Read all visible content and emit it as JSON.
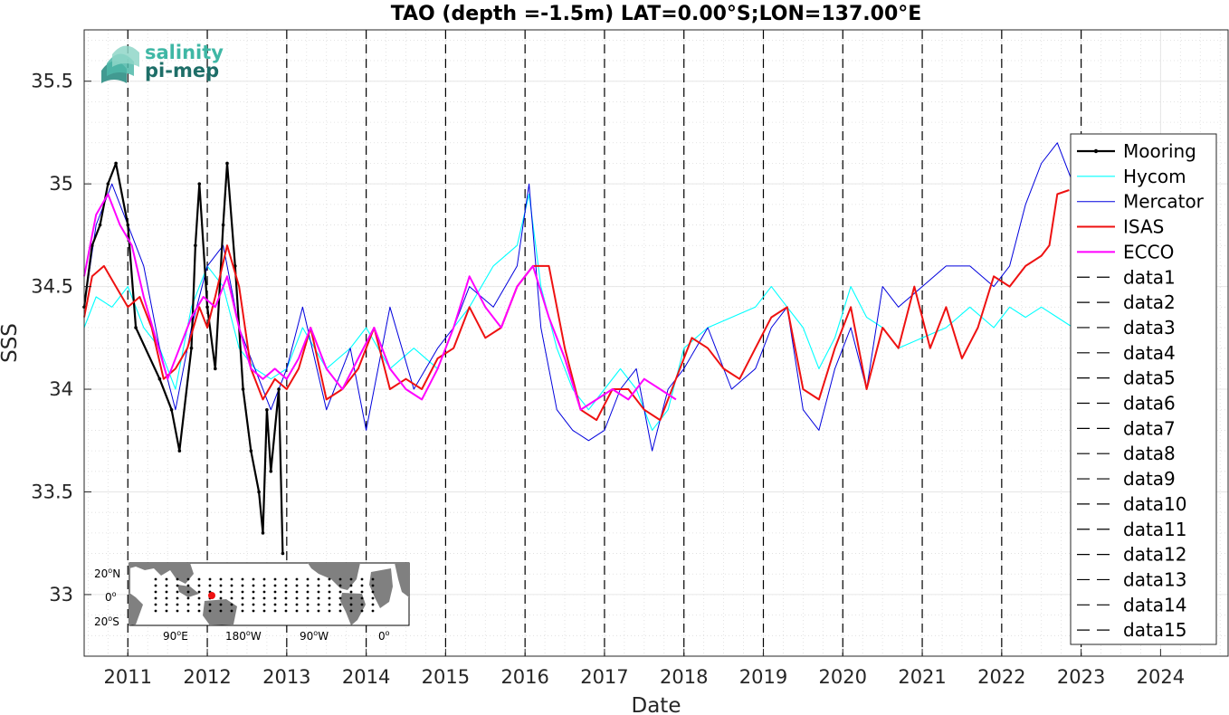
{
  "chart_data": {
    "type": "line",
    "title": "TAO (depth =-1.5m) LAT=0.00°S;LON=137.00°E",
    "xlabel": "Date",
    "ylabel": "SSS",
    "xlim": [
      2010.45,
      2024.85
    ],
    "ylim": [
      32.7,
      35.75
    ],
    "grid": "on",
    "x_ticks": [
      2011,
      2012,
      2013,
      2014,
      2015,
      2016,
      2017,
      2018,
      2019,
      2020,
      2021,
      2022,
      2023,
      2024
    ],
    "x_tick_labels": [
      "2011",
      "2012",
      "2013",
      "2014",
      "2015",
      "2016",
      "2017",
      "2018",
      "2019",
      "2020",
      "2021",
      "2022",
      "2023",
      "2024"
    ],
    "y_ticks": [
      33,
      33.5,
      34,
      34.5,
      35,
      35.5
    ],
    "y_tick_labels": [
      "33",
      "33.5",
      "34",
      "34.5",
      "35",
      "35.5"
    ],
    "vertical_dashed_lines": [
      2011,
      2012,
      2013,
      2014,
      2015,
      2016,
      2017,
      2018,
      2019,
      2020,
      2021,
      2022,
      2023
    ],
    "legend_position": "right",
    "series": [
      {
        "name": "Mooring",
        "color": "#000000",
        "style": "solid-dots",
        "width": 2.2,
        "x": [
          2010.45,
          2010.55,
          2010.65,
          2010.75,
          2010.85,
          2011.0,
          2011.1,
          2011.4,
          2011.55,
          2011.65,
          2011.8,
          2011.85,
          2011.9,
          2012.0,
          2012.1,
          2012.2,
          2012.25,
          2012.35,
          2012.45,
          2012.55,
          2012.65,
          2012.7,
          2012.75,
          2012.8,
          2012.9,
          2012.95
        ],
        "values": [
          34.4,
          34.7,
          34.8,
          35.0,
          35.1,
          34.8,
          34.3,
          34.05,
          33.9,
          33.7,
          34.2,
          34.7,
          35.0,
          34.4,
          34.1,
          34.8,
          35.1,
          34.6,
          34.0,
          33.7,
          33.5,
          33.3,
          33.9,
          33.6,
          34.0,
          33.2
        ]
      },
      {
        "name": "Hycom",
        "color": "#00ffff",
        "style": "solid",
        "width": 1.1,
        "x": [
          2010.45,
          2010.6,
          2010.8,
          2011.0,
          2011.2,
          2011.4,
          2011.6,
          2011.8,
          2012.0,
          2012.2,
          2012.4,
          2012.6,
          2012.8,
          2013.0,
          2013.2,
          2013.5,
          2013.8,
          2014.0,
          2014.3,
          2014.6,
          2014.9,
          2015.1,
          2015.3,
          2015.6,
          2015.9,
          2016.05,
          2016.2,
          2016.4,
          2016.6,
          2016.8,
          2017.0,
          2017.2,
          2017.4,
          2017.6,
          2017.8,
          2018.0,
          2018.3,
          2018.6,
          2018.9,
          2019.1,
          2019.3,
          2019.5,
          2019.7,
          2019.9,
          2020.1,
          2020.3,
          2020.5,
          2020.7,
          2021.0,
          2021.3,
          2021.6,
          2021.9,
          2022.1,
          2022.3,
          2022.5,
          2022.7,
          2022.9
        ],
        "values": [
          34.3,
          34.45,
          34.4,
          34.5,
          34.3,
          34.2,
          34.0,
          34.4,
          34.6,
          34.5,
          34.2,
          34.1,
          34.05,
          34.1,
          34.3,
          34.1,
          34.2,
          34.3,
          34.1,
          34.2,
          34.1,
          34.3,
          34.4,
          34.6,
          34.7,
          34.95,
          34.5,
          34.2,
          34.0,
          33.9,
          34.0,
          34.1,
          34.0,
          33.8,
          33.9,
          34.2,
          34.3,
          34.35,
          34.4,
          34.5,
          34.4,
          34.3,
          34.1,
          34.25,
          34.5,
          34.35,
          34.3,
          34.2,
          34.25,
          34.3,
          34.4,
          34.3,
          34.4,
          34.35,
          34.4,
          34.35,
          34.3
        ]
      },
      {
        "name": "Mercator",
        "color": "#0000dd",
        "style": "solid",
        "width": 1.0,
        "x": [
          2010.45,
          2010.6,
          2010.8,
          2011.0,
          2011.2,
          2011.4,
          2011.6,
          2011.8,
          2012.0,
          2012.2,
          2012.4,
          2012.6,
          2012.8,
          2013.0,
          2013.2,
          2013.5,
          2013.8,
          2014.0,
          2014.3,
          2014.6,
          2014.9,
          2015.1,
          2015.3,
          2015.6,
          2015.9,
          2016.05,
          2016.2,
          2016.4,
          2016.6,
          2016.8,
          2017.0,
          2017.2,
          2017.4,
          2017.6,
          2017.8,
          2018.0,
          2018.3,
          2018.6,
          2018.9,
          2019.1,
          2019.3,
          2019.5,
          2019.7,
          2019.9,
          2020.1,
          2020.3,
          2020.5,
          2020.7,
          2021.0,
          2021.3,
          2021.6,
          2021.9,
          2022.1,
          2022.3,
          2022.5,
          2022.7,
          2022.9
        ],
        "values": [
          34.4,
          34.8,
          35.0,
          34.8,
          34.6,
          34.2,
          33.9,
          34.3,
          34.6,
          34.7,
          34.3,
          34.1,
          33.9,
          34.1,
          34.4,
          33.9,
          34.2,
          33.8,
          34.4,
          34.0,
          34.2,
          34.3,
          34.5,
          34.4,
          34.6,
          35.0,
          34.3,
          33.9,
          33.8,
          33.75,
          33.8,
          34.0,
          34.1,
          33.7,
          34.0,
          34.1,
          34.3,
          34.0,
          34.1,
          34.3,
          34.4,
          33.9,
          33.8,
          34.1,
          34.3,
          34.0,
          34.5,
          34.4,
          34.5,
          34.6,
          34.6,
          34.5,
          34.6,
          34.9,
          35.1,
          35.2,
          35.0
        ]
      },
      {
        "name": "ISAS",
        "color": "#ee1111",
        "style": "solid",
        "width": 2.0,
        "x": [
          2010.45,
          2010.55,
          2010.7,
          2010.85,
          2011.0,
          2011.15,
          2011.3,
          2011.45,
          2011.6,
          2011.75,
          2011.9,
          2012.0,
          2012.1,
          2012.25,
          2012.4,
          2012.55,
          2012.7,
          2012.85,
          2013.0,
          2013.15,
          2013.3,
          2013.5,
          2013.7,
          2013.9,
          2014.1,
          2014.3,
          2014.5,
          2014.7,
          2014.9,
          2015.1,
          2015.3,
          2015.5,
          2015.7,
          2015.9,
          2016.1,
          2016.3,
          2016.5,
          2016.7,
          2016.9,
          2017.1,
          2017.3,
          2017.5,
          2017.7,
          2017.9,
          2018.1,
          2018.3,
          2018.5,
          2018.7,
          2018.9,
          2019.1,
          2019.3,
          2019.5,
          2019.7,
          2019.9,
          2020.1,
          2020.3,
          2020.5,
          2020.7,
          2020.9,
          2021.1,
          2021.3,
          2021.5,
          2021.7,
          2021.9,
          2022.1,
          2022.3,
          2022.5,
          2022.6,
          2022.7,
          2022.85
        ],
        "values": [
          34.35,
          34.55,
          34.6,
          34.5,
          34.4,
          34.45,
          34.3,
          34.05,
          34.1,
          34.2,
          34.4,
          34.3,
          34.45,
          34.7,
          34.5,
          34.1,
          33.95,
          34.05,
          34.0,
          34.1,
          34.3,
          33.95,
          34.0,
          34.1,
          34.3,
          34.0,
          34.05,
          34.0,
          34.15,
          34.2,
          34.4,
          34.25,
          34.3,
          34.5,
          34.6,
          34.6,
          34.2,
          33.9,
          33.85,
          34.0,
          34.0,
          33.9,
          33.85,
          34.05,
          34.25,
          34.2,
          34.1,
          34.05,
          34.2,
          34.35,
          34.4,
          34.0,
          33.95,
          34.2,
          34.4,
          34.0,
          34.3,
          34.2,
          34.5,
          34.2,
          34.4,
          34.15,
          34.3,
          34.55,
          34.5,
          34.6,
          34.65,
          34.7,
          34.95,
          34.97
        ]
      },
      {
        "name": "ECCO",
        "color": "#ff00ff",
        "style": "solid",
        "width": 2.0,
        "x": [
          2010.45,
          2010.6,
          2010.75,
          2010.9,
          2011.05,
          2011.2,
          2011.35,
          2011.5,
          2011.65,
          2011.8,
          2011.95,
          2012.1,
          2012.25,
          2012.4,
          2012.55,
          2012.7,
          2012.85,
          2013.0,
          2013.15,
          2013.3,
          2013.5,
          2013.7,
          2013.9,
          2014.1,
          2014.3,
          2014.5,
          2014.7,
          2014.9,
          2015.1,
          2015.3,
          2015.5,
          2015.7,
          2015.9,
          2016.1,
          2016.3,
          2016.5,
          2016.7,
          2016.9,
          2017.1,
          2017.3,
          2017.5,
          2017.7,
          2017.9
        ],
        "values": [
          34.55,
          34.85,
          34.95,
          34.8,
          34.7,
          34.45,
          34.25,
          34.05,
          34.2,
          34.35,
          34.45,
          34.4,
          34.55,
          34.3,
          34.1,
          34.05,
          34.1,
          34.05,
          34.15,
          34.3,
          34.1,
          34.0,
          34.15,
          34.3,
          34.1,
          34.0,
          33.95,
          34.1,
          34.3,
          34.55,
          34.4,
          34.3,
          34.5,
          34.6,
          34.35,
          34.15,
          33.9,
          33.95,
          34.0,
          33.95,
          34.05,
          34.0,
          33.95
        ]
      },
      {
        "name": "data1",
        "color": "#000000",
        "style": "dashed",
        "x": [],
        "values": []
      },
      {
        "name": "data2",
        "color": "#000000",
        "style": "dashed",
        "x": [],
        "values": []
      },
      {
        "name": "data3",
        "color": "#000000",
        "style": "dashed",
        "x": [],
        "values": []
      },
      {
        "name": "data4",
        "color": "#000000",
        "style": "dashed",
        "x": [],
        "values": []
      },
      {
        "name": "data5",
        "color": "#000000",
        "style": "dashed",
        "x": [],
        "values": []
      },
      {
        "name": "data6",
        "color": "#000000",
        "style": "dashed",
        "x": [],
        "values": []
      },
      {
        "name": "data7",
        "color": "#000000",
        "style": "dashed",
        "x": [],
        "values": []
      },
      {
        "name": "data8",
        "color": "#000000",
        "style": "dashed",
        "x": [],
        "values": []
      },
      {
        "name": "data9",
        "color": "#000000",
        "style": "dashed",
        "x": [],
        "values": []
      },
      {
        "name": "data10",
        "color": "#000000",
        "style": "dashed",
        "x": [],
        "values": []
      },
      {
        "name": "data11",
        "color": "#000000",
        "style": "dashed",
        "x": [],
        "values": []
      },
      {
        "name": "data12",
        "color": "#000000",
        "style": "dashed",
        "x": [],
        "values": []
      },
      {
        "name": "data13",
        "color": "#000000",
        "style": "dashed",
        "x": [],
        "values": []
      },
      {
        "name": "data14",
        "color": "#000000",
        "style": "dashed",
        "x": [],
        "values": []
      },
      {
        "name": "data15",
        "color": "#000000",
        "style": "dashed",
        "x": [],
        "values": []
      }
    ]
  },
  "logo": {
    "line1": "salinity",
    "line2": "pi-mep",
    "color1": "#3fb7a5",
    "color2": "#1e6e68"
  },
  "inset_map": {
    "lat_labels": [
      "20",
      "0",
      "20"
    ],
    "lat_suffixes": [
      "N",
      "",
      "S"
    ],
    "lon_labels": [
      "90",
      "180",
      "90",
      "0"
    ],
    "lon_suffixes": [
      "E",
      "W",
      "W",
      ""
    ],
    "land_color": "#808080",
    "marker_color": "#ee1111"
  }
}
